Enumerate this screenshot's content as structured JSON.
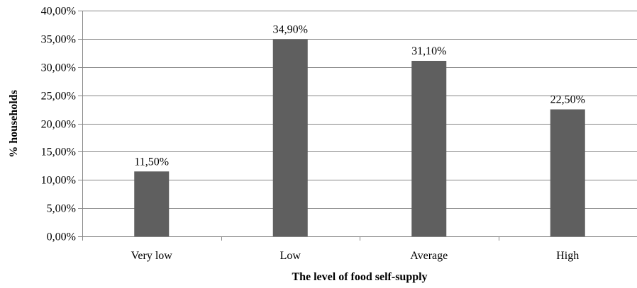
{
  "chart_data": {
    "type": "bar",
    "title": "",
    "xlabel": "The level of food self-supply",
    "ylabel": "% households",
    "categories": [
      "Very low",
      "Low",
      "Average",
      "High"
    ],
    "values": [
      11.5,
      34.9,
      31.1,
      22.5
    ],
    "value_labels": [
      "11,50%",
      "34,90%",
      "31,10%",
      "22,50%"
    ],
    "ylim": [
      0,
      40
    ],
    "yticks": [
      0,
      5,
      10,
      15,
      20,
      25,
      30,
      35,
      40
    ],
    "ytick_labels": [
      "0,00%",
      "5,00%",
      "10,00%",
      "15,00%",
      "20,00%",
      "25,00%",
      "30,00%",
      "35,00%",
      "40,00%"
    ],
    "grid": true,
    "legend": "none",
    "colors": {
      "bar": "#5f5f5f",
      "grid": "#868686",
      "axis": "#868686"
    }
  }
}
